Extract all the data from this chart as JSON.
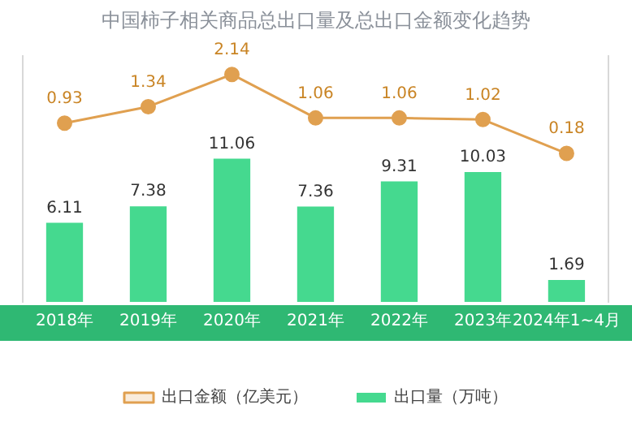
{
  "chart_data": {
    "type": "bar",
    "title": "中国柿子相关商品总出口量及总出口金额变化趋势",
    "categories": [
      "2018年",
      "2019年",
      "2020年",
      "2021年",
      "2022年",
      "2023年",
      "2024年1~4月"
    ],
    "series": [
      {
        "name": "出口量（万吨）",
        "color": "#45d98f",
        "values": [
          6.11,
          7.38,
          11.06,
          7.36,
          9.31,
          10.03,
          1.69
        ]
      },
      {
        "name": "出口金额（亿美元）",
        "type": "line",
        "axis": "y2",
        "color": "#e0a050",
        "values": [
          0.93,
          1.34,
          2.14,
          1.06,
          1.06,
          1.02,
          0.18
        ]
      }
    ],
    "ylim": [
      0,
      19
    ],
    "y2lim": [
      -3.5,
      2.6
    ],
    "data_labels": true,
    "legend": "bottom",
    "tick_labels": "x",
    "grid": false,
    "marker": "circle"
  }
}
